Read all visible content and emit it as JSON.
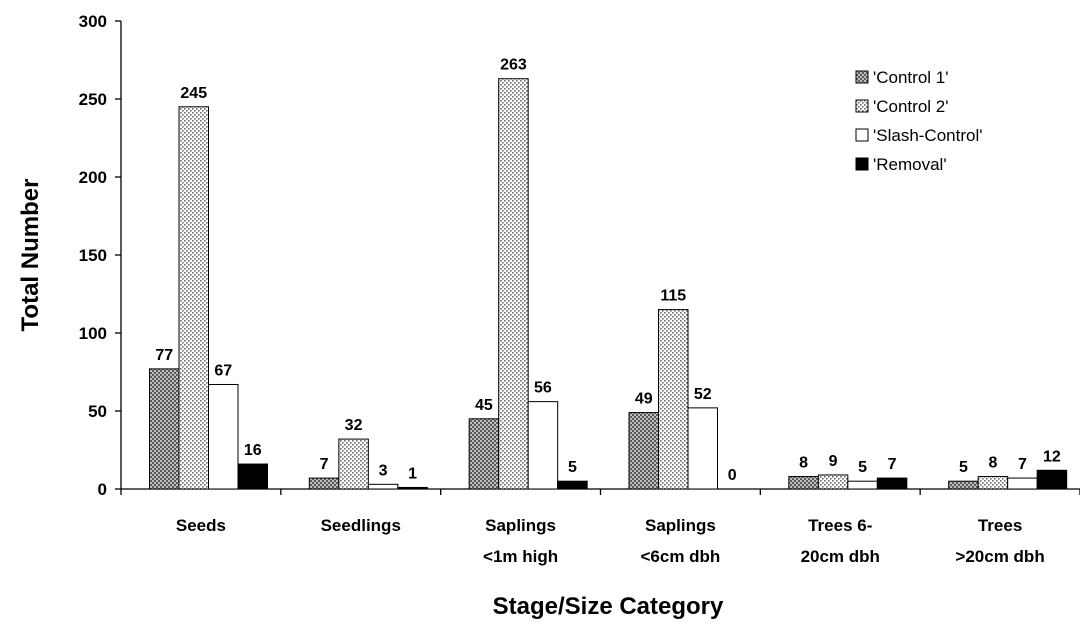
{
  "chart_data": {
    "type": "bar",
    "title": "",
    "xlabel": "Stage/Size Category",
    "ylabel": "Total Number",
    "ylim": [
      0,
      300
    ],
    "yticks": [
      0,
      50,
      100,
      150,
      200,
      250,
      300
    ],
    "grid": false,
    "legend_position": "top-right",
    "categories": [
      [
        "Seeds"
      ],
      [
        "Seedlings"
      ],
      [
        "Saplings",
        "<1m high"
      ],
      [
        "Saplings",
        "<6cm dbh"
      ],
      [
        "Trees 6-",
        "20cm dbh"
      ],
      [
        "Trees",
        ">20cm dbh"
      ]
    ],
    "series": [
      {
        "name": "'Control 1'",
        "pattern": "dark-checker",
        "values": [
          77,
          7,
          45,
          49,
          8,
          5
        ]
      },
      {
        "name": "'Control 2'",
        "pattern": "light-dots",
        "values": [
          245,
          32,
          263,
          115,
          9,
          8
        ]
      },
      {
        "name": "'Slash-Control'",
        "pattern": "white",
        "values": [
          67,
          3,
          56,
          52,
          5,
          7
        ]
      },
      {
        "name": "'Removal'",
        "pattern": "black",
        "values": [
          16,
          1,
          5,
          0,
          7,
          12
        ]
      }
    ],
    "colors": {
      "axis": "#000000",
      "bar_stroke": "#000000",
      "removal_fill": "#000000",
      "slash_fill": "#ffffff"
    }
  }
}
